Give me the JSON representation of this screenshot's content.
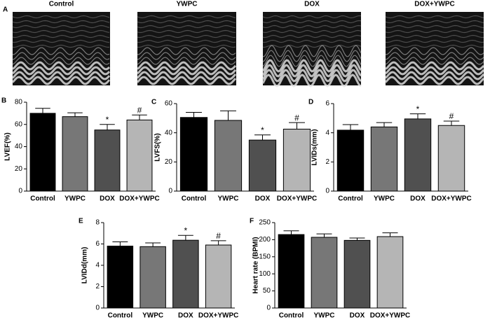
{
  "panel_a": {
    "label": "A",
    "titles": [
      "Control",
      "YWPC",
      "DOX",
      "DOX+YWPC"
    ]
  },
  "chart_data": [
    {
      "type": "bar",
      "panel_label": "B",
      "ylabel": "LVEF(%)",
      "categories": [
        "Control",
        "YWPC",
        "DOX",
        "DOX+YWPC"
      ],
      "values": [
        70,
        67,
        55,
        64
      ],
      "errors": [
        4.5,
        3.5,
        5,
        4.5
      ],
      "markers": [
        null,
        null,
        "*",
        "#"
      ],
      "colors": [
        "#000000",
        "#777777",
        "#505050",
        "#b5b5b5"
      ],
      "ylim": [
        0,
        80
      ],
      "yticks": [
        0,
        20,
        40,
        60,
        80
      ]
    },
    {
      "type": "bar",
      "panel_label": "C",
      "ylabel": "LVFS(%)",
      "categories": [
        "Control",
        "YWPC",
        "DOX",
        "DOX+YWPC"
      ],
      "values": [
        50.5,
        48.5,
        35,
        42.5
      ],
      "errors": [
        3.5,
        6.5,
        3.5,
        4.5
      ],
      "markers": [
        null,
        null,
        "*",
        "#"
      ],
      "colors": [
        "#000000",
        "#777777",
        "#505050",
        "#b5b5b5"
      ],
      "ylim": [
        0,
        60
      ],
      "yticks": [
        0,
        20,
        40,
        60
      ]
    },
    {
      "type": "bar",
      "panel_label": "D",
      "ylabel": "LVIDs(mm)",
      "categories": [
        "Control",
        "YWPC",
        "DOX",
        "DOX+YWPC"
      ],
      "values": [
        4.18,
        4.4,
        4.95,
        4.5
      ],
      "errors": [
        0.38,
        0.3,
        0.35,
        0.3
      ],
      "markers": [
        null,
        null,
        "*",
        "#"
      ],
      "colors": [
        "#000000",
        "#777777",
        "#505050",
        "#b5b5b5"
      ],
      "ylim": [
        0,
        6
      ],
      "yticks": [
        0,
        2,
        4,
        6
      ]
    },
    {
      "type": "bar",
      "panel_label": "E",
      "ylabel": "LVIDd(mm)",
      "categories": [
        "Control",
        "YWPC",
        "DOX",
        "DOX+YWPC"
      ],
      "values": [
        5.8,
        5.75,
        6.35,
        5.9
      ],
      "errors": [
        0.4,
        0.35,
        0.45,
        0.4
      ],
      "markers": [
        null,
        null,
        "*",
        "#"
      ],
      "colors": [
        "#000000",
        "#777777",
        "#505050",
        "#b5b5b5"
      ],
      "ylim": [
        0,
        8
      ],
      "yticks": [
        0,
        2,
        4,
        6,
        8
      ]
    },
    {
      "type": "bar",
      "panel_label": "F",
      "ylabel": "Heart rate (BPMI)",
      "categories": [
        "Control",
        "YWPC",
        "DOX",
        "DOX+YWPC"
      ],
      "values": [
        215,
        207,
        198,
        209
      ],
      "errors": [
        11,
        10,
        7,
        11
      ],
      "colors": [
        "#000000",
        "#777777",
        "#505050",
        "#b5b5b5"
      ],
      "ylim": [
        0,
        250
      ],
      "yticks": [
        0,
        50,
        100,
        150,
        200,
        250
      ]
    }
  ]
}
